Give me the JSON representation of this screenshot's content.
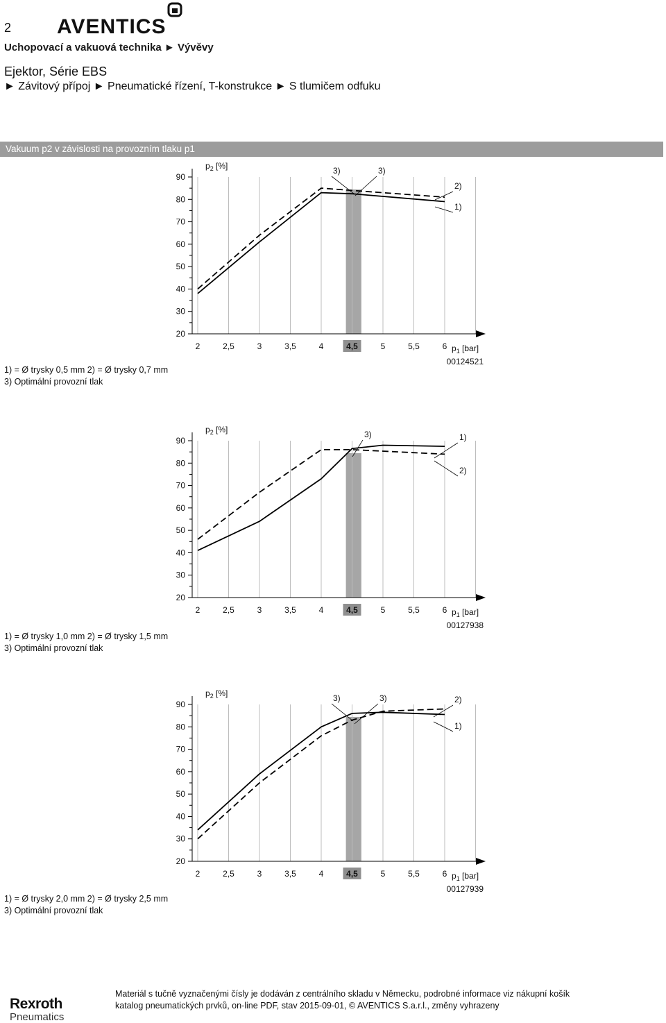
{
  "header": {
    "page_number": "2",
    "brand": "AVENTICS",
    "breadcrumb": "Uchopovací a vakuová technika ► Vývěvy",
    "title": "Ejektor, Série EBS",
    "subtitle": "► Závitový přípoj ► Pneumatické řízení, T-konstrukce ► S tlumičem odfuku"
  },
  "section": {
    "title": "Vakuum p2 v závislosti na provozním tlaku p1"
  },
  "common": {
    "y_ticks": [
      "90",
      "80",
      "70",
      "60",
      "50",
      "40",
      "30",
      "20"
    ],
    "x_ticks": [
      "2",
      "2,5",
      "3",
      "3,5",
      "4",
      "4,5",
      "5",
      "5,5",
      "6"
    ],
    "ylabel_main": "p",
    "ylabel_sub": "2",
    "ylabel_unit": "[%]",
    "xlabel_main": "p",
    "xlabel_sub": "1",
    "xlabel_unit": "[bar]",
    "colors": {
      "grid": "#bdbdbd",
      "optimum_band": "#a6a6a6",
      "line": "#000000",
      "section_bar": "#9c9c9c"
    }
  },
  "chart_data": [
    {
      "type": "line",
      "code": "00124521",
      "x_axis": {
        "label": "p1 [bar]",
        "range": [
          2,
          6
        ],
        "highlight_tick": "4,5"
      },
      "y_axis": {
        "label": "p2 [%]",
        "range": [
          20,
          90
        ]
      },
      "series": [
        {
          "name": "1)",
          "style": "solid",
          "x": [
            2,
            3,
            4,
            4.5,
            6
          ],
          "y": [
            38,
            61,
            83,
            82.5,
            79
          ]
        },
        {
          "name": "2)",
          "style": "dashed",
          "x": [
            2,
            3,
            4,
            4.5,
            6
          ],
          "y": [
            40,
            64,
            85,
            84,
            81
          ]
        }
      ],
      "optimum_band": {
        "from": 4.4,
        "to": 4.65
      },
      "annotations": [
        {
          "text": "3)",
          "target": "optimum on series 2"
        },
        {
          "text": "3)",
          "target": "optimum on series 1"
        },
        {
          "text": "2)",
          "target": "series 2 end"
        },
        {
          "text": "1)",
          "target": "series 1 end"
        }
      ],
      "legend": [
        "1) = Ø trysky 0,5 mm  2) = Ø trysky 0,7 mm",
        "3) Optimální provozní tlak"
      ]
    },
    {
      "type": "line",
      "code": "00127938",
      "x_axis": {
        "label": "p1 [bar]",
        "range": [
          2,
          6
        ],
        "highlight_tick": "4,5"
      },
      "y_axis": {
        "label": "p2 [%]",
        "range": [
          20,
          90
        ]
      },
      "series": [
        {
          "name": "1)",
          "style": "solid",
          "x": [
            2,
            3,
            4,
            4.5,
            5,
            6
          ],
          "y": [
            41,
            54,
            73,
            86.5,
            88,
            87.5
          ]
        },
        {
          "name": "2)",
          "style": "dashed",
          "x": [
            2,
            3,
            4,
            4.5,
            6
          ],
          "y": [
            46,
            67,
            86,
            86,
            84
          ]
        }
      ],
      "optimum_band": {
        "from": 4.4,
        "to": 4.65
      },
      "annotations": [
        {
          "text": "3)",
          "target": "optimum"
        },
        {
          "text": "1)",
          "target": "series 1 end"
        },
        {
          "text": "2)",
          "target": "series 2 end"
        }
      ],
      "legend": [
        "1) = Ø trysky 1,0 mm  2) = Ø trysky 1,5 mm",
        "3) Optimální provozní tlak"
      ]
    },
    {
      "type": "line",
      "code": "00127939",
      "x_axis": {
        "label": "p1 [bar]",
        "range": [
          2,
          6
        ],
        "highlight_tick": "4,5"
      },
      "y_axis": {
        "label": "p2 [%]",
        "range": [
          20,
          90
        ]
      },
      "series": [
        {
          "name": "1)",
          "style": "solid",
          "x": [
            2,
            3,
            4,
            4.5,
            5,
            6
          ],
          "y": [
            34,
            59,
            80,
            86,
            86.5,
            85.5
          ]
        },
        {
          "name": "2)",
          "style": "dashed",
          "x": [
            2,
            3,
            4,
            4.5,
            5,
            6
          ],
          "y": [
            30,
            55,
            76,
            83,
            87,
            88
          ]
        }
      ],
      "optimum_band": {
        "from": 4.4,
        "to": 4.65
      },
      "annotations": [
        {
          "text": "3)",
          "target": "optimum on series 1"
        },
        {
          "text": "3)",
          "target": "optimum on series 2"
        },
        {
          "text": "2)",
          "target": "series 2 end"
        },
        {
          "text": "1)",
          "target": "series 1 end"
        }
      ],
      "legend": [
        "1) = Ø trysky 2,0 mm  2) = Ø trysky 2,5 mm",
        "3) Optimální provozní tlak"
      ]
    }
  ],
  "footer": {
    "brand": "Rexroth",
    "brand_sub": "Pneumatics",
    "line1": "Materiál s tučně vyznačenými čísly je dodáván z centrálního skladu v Německu, podrobné informace viz nákupní košík",
    "line2": "katalog pneumatických prvků, on-line PDF, stav 2015-09-01, © AVENTICS S.a.r.l., změny vyhrazeny"
  }
}
